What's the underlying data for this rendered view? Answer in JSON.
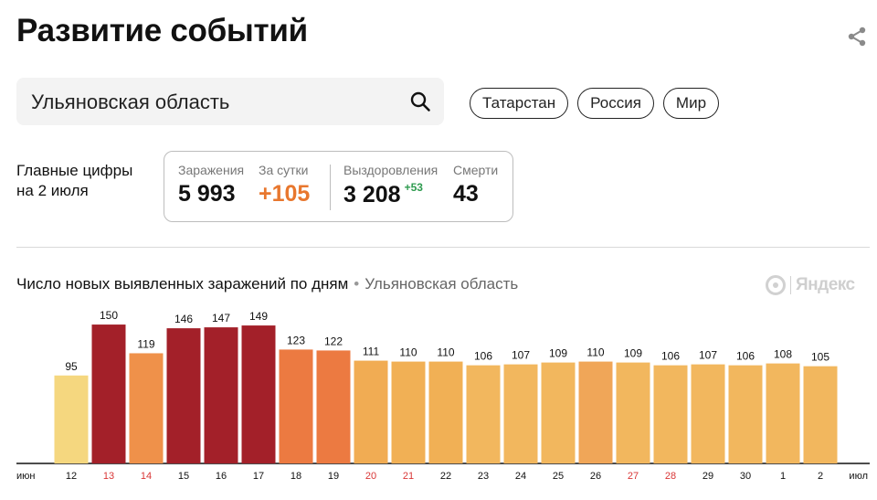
{
  "header": {
    "title": "Развитие событий",
    "share_icon": "share-icon"
  },
  "search": {
    "value": "Ульяновская область",
    "icon": "search-icon"
  },
  "regions": [
    "Татарстан",
    "Россия",
    "Мир"
  ],
  "summary": {
    "label_line1": "Главные цифры",
    "label_line2": "на 2 июля",
    "infections_label": "Заражения",
    "infections_value": "5 993",
    "daily_label": "За сутки",
    "daily_value": "+105",
    "recoveries_label": "Выздоровления",
    "recoveries_value": "3 208",
    "recoveries_delta": "+53",
    "deaths_label": "Смерти",
    "deaths_value": "43"
  },
  "chart_header": {
    "title": "Число новых выявленных заражений по дням",
    "region": "Ульяновская область",
    "brand": "Яндекс"
  },
  "colors": {
    "orange_accent": "#e8772e",
    "green_delta": "#2e9b4f",
    "weekend_label": "#d93636"
  },
  "chart_data": {
    "type": "bar",
    "title": "Число новых выявленных заражений по дням",
    "month_start_label": "июн",
    "month_end_label": "июл",
    "categories": [
      "12",
      "13",
      "14",
      "15",
      "16",
      "17",
      "18",
      "19",
      "20",
      "21",
      "22",
      "23",
      "24",
      "25",
      "26",
      "27",
      "28",
      "29",
      "30",
      "1",
      "2"
    ],
    "values": [
      95,
      150,
      119,
      146,
      147,
      149,
      123,
      122,
      111,
      110,
      110,
      106,
      107,
      109,
      110,
      109,
      106,
      107,
      106,
      108,
      105
    ],
    "bar_colors": [
      "#f5d77f",
      "#a32029",
      "#ef914a",
      "#a32029",
      "#a32029",
      "#a32029",
      "#ec7a41",
      "#ec7a41",
      "#f1ac53",
      "#f1b055",
      "#f1b055",
      "#f2b75e",
      "#f2b75e",
      "#f2b75e",
      "#f0a658",
      "#f2b75e",
      "#f2b75e",
      "#f2b75e",
      "#f2b75e",
      "#f2b75e",
      "#f2b75e"
    ],
    "weekend_labels": [
      "13",
      "14",
      "20",
      "21",
      "27",
      "28"
    ],
    "ylim": [
      0,
      155
    ],
    "grid": false,
    "legend": "none"
  }
}
